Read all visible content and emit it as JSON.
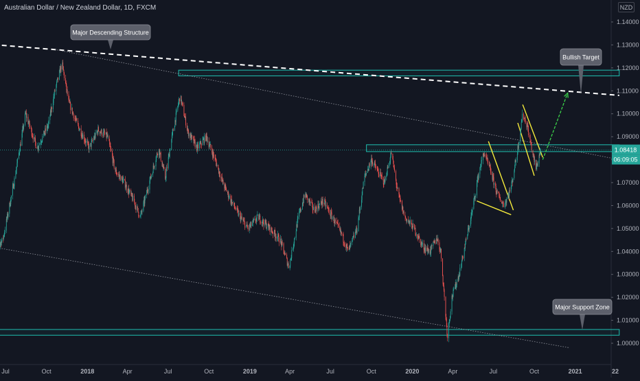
{
  "header": {
    "symbol_title": "Australian Dollar / New Zealand Dollar, 1D, FXCM",
    "currency": "NZD"
  },
  "price_labels": {
    "last_price": "1.08418",
    "countdown": "06:09:05"
  },
  "colors": {
    "background": "#131722",
    "up_candle": "#26a69a",
    "down_candle": "#ef5350",
    "zone_border": "#1fbfb0",
    "wedge_lines": "#f5eb3b",
    "target_arrow": "#3bd14a",
    "trendline": "#ffffff",
    "callout_bg": "#5d606b"
  },
  "annotations": [
    {
      "id": "major-descending-structure",
      "text": "Major Descending Structure"
    },
    {
      "id": "bullish-target",
      "text": "Bullish Target"
    },
    {
      "id": "major-support-zone",
      "text": "Major Support Zone"
    }
  ],
  "chart_data": {
    "type": "candlestick",
    "ylim": [
      0.994,
      1.148
    ],
    "y_ticks": [
      1.0,
      1.01,
      1.02,
      1.03,
      1.04,
      1.05,
      1.06,
      1.07,
      1.08,
      1.09,
      1.1,
      1.11,
      1.12,
      1.13,
      1.14
    ],
    "y_tick_labels": [
      "1.00000",
      "1.01000",
      "1.02000",
      "1.03000",
      "1.04000",
      "1.05000",
      "1.06000",
      "1.07000",
      "1.08000",
      "1.09000",
      "1.10000",
      "1.11000",
      "1.12000",
      "1.13000",
      "1.14000"
    ],
    "x_ticks": [
      {
        "date": "2017-07-01",
        "label": "Jul"
      },
      {
        "date": "2017-10-01",
        "label": "Oct"
      },
      {
        "date": "2018-01-01",
        "label": "2018"
      },
      {
        "date": "2018-04-01",
        "label": "Apr"
      },
      {
        "date": "2018-07-01",
        "label": "Jul"
      },
      {
        "date": "2018-10-01",
        "label": "Oct"
      },
      {
        "date": "2019-01-01",
        "label": "2019"
      },
      {
        "date": "2019-04-01",
        "label": "Apr"
      },
      {
        "date": "2019-07-01",
        "label": "Jul"
      },
      {
        "date": "2019-10-01",
        "label": "Oct"
      },
      {
        "date": "2020-01-01",
        "label": "2020"
      },
      {
        "date": "2020-04-01",
        "label": "Apr"
      },
      {
        "date": "2020-07-01",
        "label": "Jul"
      },
      {
        "date": "2020-10-01",
        "label": "Oct"
      },
      {
        "date": "2021-01-01",
        "label": "2021"
      },
      {
        "date": "2021-04-01",
        "label": "22"
      }
    ],
    "price_path": [
      [
        "2017-06-01",
        1.04
      ],
      [
        "2017-06-25",
        1.045
      ],
      [
        "2017-07-20",
        1.07
      ],
      [
        "2017-08-15",
        1.1
      ],
      [
        "2017-09-10",
        1.085
      ],
      [
        "2017-10-05",
        1.095
      ],
      [
        "2017-10-20",
        1.11
      ],
      [
        "2017-11-05",
        1.122
      ],
      [
        "2017-11-20",
        1.105
      ],
      [
        "2017-12-10",
        1.095
      ],
      [
        "2018-01-05",
        1.085
      ],
      [
        "2018-01-25",
        1.093
      ],
      [
        "2018-02-15",
        1.09
      ],
      [
        "2018-03-05",
        1.075
      ],
      [
        "2018-03-25",
        1.07
      ],
      [
        "2018-04-15",
        1.062
      ],
      [
        "2018-04-30",
        1.055
      ],
      [
        "2018-05-20",
        1.07
      ],
      [
        "2018-06-10",
        1.085
      ],
      [
        "2018-06-25",
        1.072
      ],
      [
        "2018-07-10",
        1.09
      ],
      [
        "2018-07-28",
        1.108
      ],
      [
        "2018-08-15",
        1.092
      ],
      [
        "2018-09-05",
        1.085
      ],
      [
        "2018-09-25",
        1.09
      ],
      [
        "2018-10-15",
        1.08
      ],
      [
        "2018-11-01",
        1.07
      ],
      [
        "2018-11-20",
        1.062
      ],
      [
        "2018-12-10",
        1.055
      ],
      [
        "2018-12-28",
        1.05
      ],
      [
        "2019-01-20",
        1.055
      ],
      [
        "2019-02-15",
        1.05
      ],
      [
        "2019-03-10",
        1.045
      ],
      [
        "2019-03-30",
        1.033
      ],
      [
        "2019-04-20",
        1.055
      ],
      [
        "2019-05-05",
        1.065
      ],
      [
        "2019-05-25",
        1.058
      ],
      [
        "2019-06-15",
        1.062
      ],
      [
        "2019-07-05",
        1.055
      ],
      [
        "2019-07-25",
        1.048
      ],
      [
        "2019-08-10",
        1.04
      ],
      [
        "2019-08-30",
        1.05
      ],
      [
        "2019-09-15",
        1.072
      ],
      [
        "2019-10-01",
        1.08
      ],
      [
        "2019-10-15",
        1.075
      ],
      [
        "2019-10-30",
        1.07
      ],
      [
        "2019-11-15",
        1.083
      ],
      [
        "2019-11-30",
        1.065
      ],
      [
        "2019-12-15",
        1.055
      ],
      [
        "2020-01-05",
        1.05
      ],
      [
        "2020-01-25",
        1.042
      ],
      [
        "2020-02-10",
        1.04
      ],
      [
        "2020-02-25",
        1.046
      ],
      [
        "2020-03-05",
        1.04
      ],
      [
        "2020-03-15",
        1.015
      ],
      [
        "2020-03-20",
        1.003
      ],
      [
        "2020-03-30",
        1.02
      ],
      [
        "2020-04-15",
        1.03
      ],
      [
        "2020-05-01",
        1.045
      ],
      [
        "2020-05-15",
        1.058
      ],
      [
        "2020-05-30",
        1.075
      ],
      [
        "2020-06-10",
        1.083
      ],
      [
        "2020-06-25",
        1.075
      ],
      [
        "2020-07-10",
        1.065
      ],
      [
        "2020-07-25",
        1.06
      ],
      [
        "2020-08-10",
        1.068
      ],
      [
        "2020-08-25",
        1.085
      ],
      [
        "2020-09-05",
        1.1
      ],
      [
        "2020-09-15",
        1.095
      ],
      [
        "2020-09-25",
        1.085
      ],
      [
        "2020-10-05",
        1.076
      ],
      [
        "2020-10-15",
        1.0842
      ]
    ],
    "lines": [
      {
        "name": "major-descending-trendline",
        "style": "dashed",
        "points": [
          [
            "2017-04-10",
            1.131
          ],
          [
            "2021-04-10",
            1.108
          ]
        ]
      },
      {
        "name": "channel-upper-line",
        "style": "dotted",
        "points": [
          [
            "2017-10-20",
            1.128
          ],
          [
            "2021-04-10",
            1.08
          ]
        ]
      },
      {
        "name": "channel-lower-line",
        "style": "dotted",
        "points": [
          [
            "2017-06-01",
            1.042
          ],
          [
            "2020-12-20",
            0.998
          ]
        ]
      },
      {
        "name": "wedge-upper-line",
        "style": "solid",
        "points": [
          [
            "2020-06-20",
            1.088
          ],
          [
            "2020-08-15",
            1.058
          ]
        ]
      },
      {
        "name": "wedge-lower-line",
        "style": "solid",
        "points": [
          [
            "2020-05-25",
            1.062
          ],
          [
            "2020-08-10",
            1.056
          ]
        ]
      },
      {
        "name": "flag-upper-line",
        "style": "solid",
        "points": [
          [
            "2020-09-05",
            1.104
          ],
          [
            "2020-10-20",
            1.081
          ]
        ]
      },
      {
        "name": "flag-lower-line",
        "style": "solid",
        "points": [
          [
            "2020-08-25",
            1.096
          ],
          [
            "2020-10-01",
            1.073
          ]
        ]
      }
    ],
    "zones": [
      {
        "name": "upper-resistance-zone",
        "from": "2018-07-25",
        "to": "2021-04-10",
        "low": 1.1165,
        "high": 1.119
      },
      {
        "name": "mid-resistance-zone",
        "from": "2019-09-20",
        "to": "2021-04-10",
        "low": 1.0835,
        "high": 1.0865
      },
      {
        "name": "major-support-zone",
        "from": "2017-04-10",
        "to": "2021-04-10",
        "low": 1.0035,
        "high": 1.006
      }
    ],
    "target_arrow": {
      "from": [
        "2020-10-20",
        1.08
      ],
      "to": [
        "2020-12-15",
        1.109
      ]
    },
    "last_price": 1.08418
  }
}
